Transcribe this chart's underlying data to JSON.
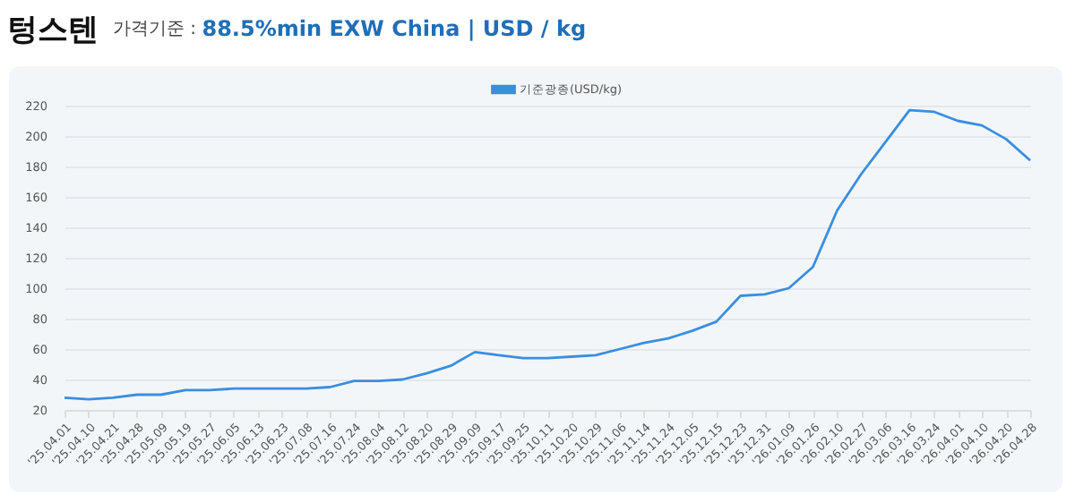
{
  "chart_data": {
    "type": "line",
    "title": "텅스텐",
    "subtitle": "가격기준 : 88.5%min EXW China | USD / kg",
    "categories": [
      "'25.04.01",
      "'25.04.10",
      "'25.04.21",
      "'25.04.28",
      "'25.05.09",
      "'25.05.19",
      "'25.05.27",
      "'25.06.05",
      "'25.06.13",
      "'25.06.23",
      "'25.07.08",
      "'25.07.16",
      "'25.07.24",
      "'25.08.04",
      "'25.08.12",
      "'25.08.20",
      "'25.08.29",
      "'25.09.09",
      "'25.09.17",
      "'25.09.25",
      "'25.10.11",
      "'25.10.20",
      "'25.10.29",
      "'25.11.06",
      "'25.11.14",
      "'25.11.24",
      "'25.12.05",
      "'25.12.15",
      "'25.12.23",
      "'25.12.31",
      "'26.01.09",
      "'26.01.26",
      "'26.02.10",
      "'26.02.27",
      "'26.03.06",
      "'26.03.16",
      "'26.03.24",
      "'26.04.01",
      "'26.04.10",
      "'26.04.20",
      "'26.04.28"
    ],
    "series": [
      {
        "name": "기준광종(USD/kg)",
        "color": "#3a8ee0",
        "values": [
          28,
          27,
          28,
          30,
          30,
          33,
          33,
          34,
          34,
          34,
          34,
          35,
          39,
          39,
          40,
          44,
          49,
          58,
          56,
          54,
          54,
          55,
          56,
          60,
          64,
          67,
          72,
          78,
          95,
          96,
          100,
          114,
          151,
          175,
          196,
          217,
          216,
          210,
          207,
          198,
          184
        ]
      }
    ],
    "ylim": [
      20,
      220
    ],
    "yticks": [
      20,
      40,
      60,
      80,
      100,
      120,
      140,
      160,
      180,
      200,
      220
    ],
    "grid": "y",
    "legend": "top",
    "marker": "none",
    "line_style": "solid"
  }
}
